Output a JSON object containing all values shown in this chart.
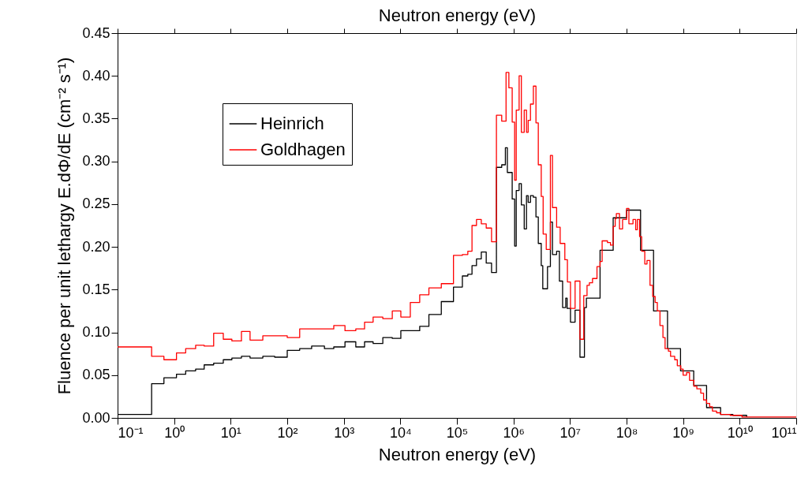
{
  "chart_data": {
    "type": "step",
    "xlabel": "Neutron energy (eV)",
    "x2label": "Neutron energy (eV)",
    "ylabel": "Fluence per unit lethargy E.dΦ/dE (cm⁻² s⁻¹)",
    "log": "x",
    "grid": false,
    "legend": "top left",
    "line_style": "solid",
    "marker": "none",
    "xlim": [
      0.1,
      100000000000
    ],
    "xticks": [
      {
        "value": 0.1,
        "label": "10⁻¹"
      },
      {
        "value": 1,
        "label": "10⁰"
      },
      {
        "value": 10,
        "label": "10¹"
      },
      {
        "value": 100,
        "label": "10²"
      },
      {
        "value": 1000,
        "label": "10³"
      },
      {
        "value": 10000,
        "label": "10⁴"
      },
      {
        "value": 100000,
        "label": "10⁵"
      },
      {
        "value": 1000000,
        "label": "10⁶"
      },
      {
        "value": 10000000,
        "label": "10⁷"
      },
      {
        "value": 100000000,
        "label": "10⁸"
      },
      {
        "value": 1000000000,
        "label": "10⁹"
      },
      {
        "value": 10000000000,
        "label": "10¹⁰"
      },
      {
        "value": 100000000000,
        "label": "10¹¹"
      }
    ],
    "ylim": [
      0,
      0.45
    ],
    "yticks": [
      {
        "value": 0,
        "label": "0.00"
      },
      0.05,
      {
        "value": 0.1,
        "label": "0.10"
      },
      0.15,
      {
        "value": 0.2,
        "label": "0.20"
      },
      0.25,
      {
        "value": 0.3,
        "label": "0.30"
      },
      0.35,
      {
        "value": 0.4,
        "label": "0.40"
      },
      0.45
    ],
    "series": [
      {
        "name": "Heinrich",
        "color": "#000000",
        "x": [
          0.1,
          0.4,
          0.66,
          1.1,
          1.6,
          2.4,
          3.4,
          5,
          7.4,
          10.5,
          15.5,
          22,
          37,
          60,
          100,
          166,
          270,
          455,
          665,
          1050,
          1630,
          2330,
          3300,
          4900,
          7200,
          10200,
          22000,
          32000,
          53000,
          87000,
          125000,
          156000,
          185000,
          222000,
          270000,
          330000,
          410000,
          500000,
          620000,
          720000,
          780000,
          950000,
          1050000,
          1120000,
          1260000,
          1380000,
          1550000,
          1700000,
          1820000,
          2000000,
          2250000,
          2500000,
          2750000,
          3100000,
          3300000,
          4000000,
          4500000,
          4900000,
          5800000,
          6500000,
          7400000,
          8400000,
          8900000,
          10200000,
          12300000,
          15000000,
          18000000,
          19500000,
          34000000,
          58000000,
          100000000,
          177000000,
          300000000,
          530000000,
          900000000,
          1540000000,
          2600000000,
          4600000000,
          7600000000,
          13300000000
        ],
        "values": [
          0.004,
          0.04,
          0.047,
          0.051,
          0.055,
          0.057,
          0.062,
          0.064,
          0.068,
          0.07,
          0.072,
          0.07,
          0.072,
          0.071,
          0.079,
          0.081,
          0.084,
          0.081,
          0.083,
          0.089,
          0.083,
          0.089,
          0.087,
          0.094,
          0.093,
          0.102,
          0.107,
          0.121,
          0.136,
          0.153,
          0.166,
          0.168,
          0.178,
          0.186,
          0.194,
          0.181,
          0.17,
          0.293,
          0.296,
          0.316,
          0.287,
          0.256,
          0.201,
          0.266,
          0.274,
          0.249,
          0.221,
          0.26,
          0.252,
          0.26,
          0.258,
          0.235,
          0.204,
          0.178,
          0.151,
          0.177,
          0.229,
          0.191,
          0.195,
          0.16,
          0.129,
          0.14,
          0.128,
          0.112,
          0.126,
          0.071,
          0.129,
          0.14,
          0.196,
          0.234,
          0.243,
          0.196,
          0.125,
          0.081,
          0.055,
          0.038,
          0.012,
          0.004,
          0.003,
          0.001
        ]
      },
      {
        "name": "Goldhagen",
        "color": "#ff0000",
        "x": [
          0.1,
          0.4,
          0.66,
          1.1,
          1.6,
          2.4,
          3.4,
          5,
          7.4,
          10.5,
          15.5,
          22,
          37,
          100,
          166,
          665,
          1050,
          1630,
          2330,
          3300,
          4900,
          7200,
          10200,
          15000,
          22000,
          32000,
          53000,
          87000,
          125000,
          156000,
          185000,
          222000,
          270000,
          330000,
          410000,
          500000,
          620000,
          740000,
          830000,
          950000,
          1050000,
          1120000,
          1260000,
          1380000,
          1550000,
          1700000,
          1820000,
          2000000,
          2250000,
          2500000,
          2750000,
          3100000,
          3350000,
          3800000,
          4500000,
          4900000,
          5800000,
          6700000,
          8100000,
          9000000,
          10200000,
          12300000,
          15000000,
          17500000,
          20000000,
          22000000,
          25000000,
          30000000,
          34000000,
          37000000,
          46000000,
          52000000,
          58000000,
          63000000,
          66000000,
          75000000,
          85000000,
          100000000,
          110000000,
          130000000,
          145000000,
          155000000,
          170000000,
          185000000,
          210000000,
          230000000,
          260000000,
          290000000,
          320000000,
          350000000,
          390000000,
          440000000,
          480000000,
          550000000,
          600000000,
          710000000,
          790000000,
          910000000,
          1000000000,
          1150000000,
          1300000000,
          1550000000,
          1750000000,
          2050000000,
          2300000000,
          2600000000,
          2950000000,
          3300000000,
          3900000000,
          4600000000,
          6800000000,
          11000000000,
          100000000000
        ],
        "values": [
          0.083,
          0.072,
          0.068,
          0.076,
          0.081,
          0.085,
          0.084,
          0.099,
          0.092,
          0.09,
          0.101,
          0.091,
          0.096,
          0.094,
          0.104,
          0.108,
          0.102,
          0.104,
          0.112,
          0.118,
          0.116,
          0.125,
          0.118,
          0.135,
          0.144,
          0.152,
          0.157,
          0.19,
          0.191,
          0.195,
          0.225,
          0.232,
          0.227,
          0.222,
          0.206,
          0.354,
          0.347,
          0.404,
          0.386,
          0.346,
          0.278,
          0.36,
          0.4,
          0.334,
          0.36,
          0.334,
          0.348,
          0.367,
          0.388,
          0.345,
          0.296,
          0.259,
          0.215,
          0.197,
          0.307,
          0.246,
          0.223,
          0.204,
          0.185,
          0.159,
          0.128,
          0.16,
          0.092,
          0.143,
          0.155,
          0.158,
          0.163,
          0.177,
          0.183,
          0.207,
          0.205,
          0.202,
          0.224,
          0.233,
          0.239,
          0.221,
          0.232,
          0.245,
          0.227,
          0.232,
          0.22,
          0.232,
          0.212,
          0.195,
          0.18,
          0.184,
          0.155,
          0.142,
          0.135,
          0.125,
          0.108,
          0.094,
          0.081,
          0.078,
          0.072,
          0.068,
          0.061,
          0.057,
          0.05,
          0.053,
          0.044,
          0.037,
          0.034,
          0.029,
          0.021,
          0.017,
          0.013,
          0.008,
          0.006,
          0.004,
          0.003,
          0.001,
          0.001
        ]
      }
    ]
  }
}
